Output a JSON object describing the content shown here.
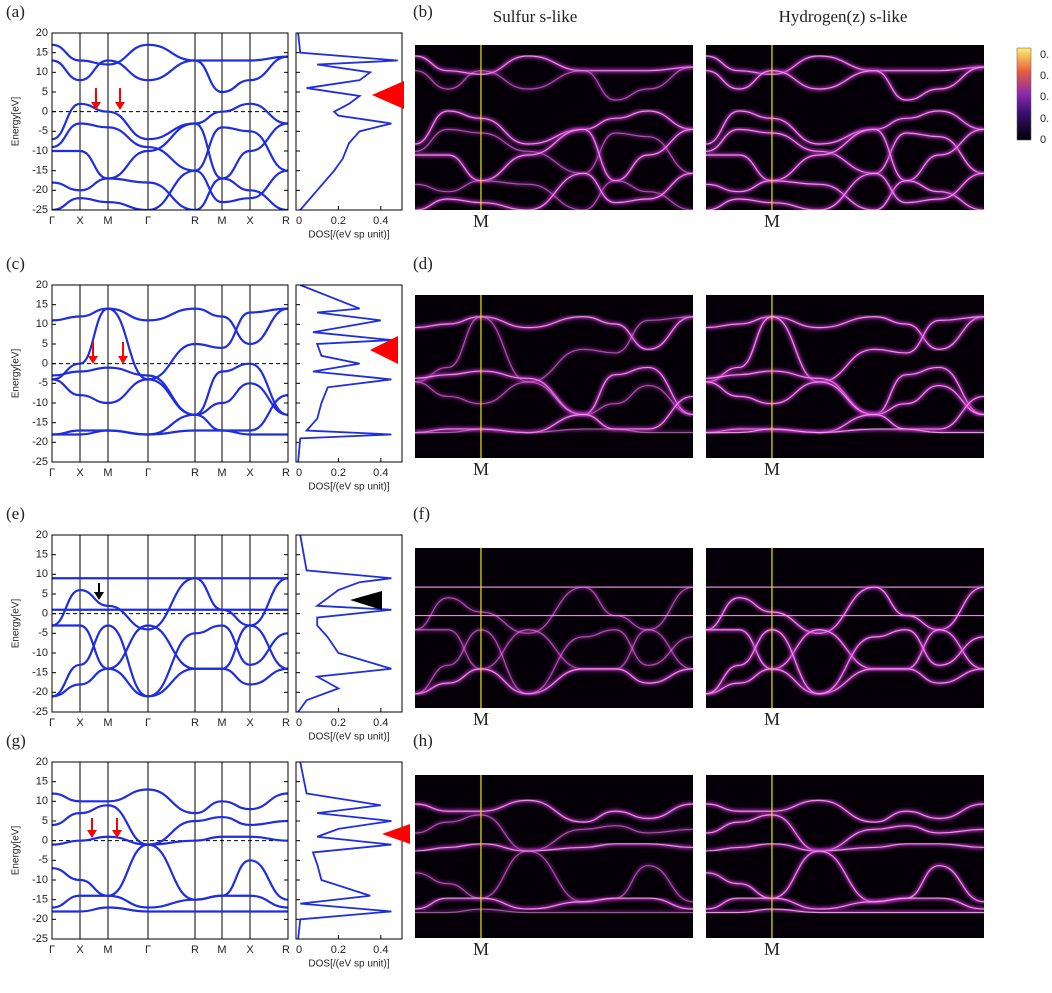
{
  "chart_data": [
    {
      "type": "band",
      "label": "(a)",
      "spectral_label": "(b)",
      "ylabel": "Energy[eV]",
      "categories": [
        "Γ",
        "X",
        "M",
        "Γ",
        "R",
        "M",
        "X",
        "R"
      ],
      "ylim": [
        -25,
        20
      ],
      "yticks": [
        20,
        15,
        10,
        5,
        0,
        -5,
        -10,
        -15,
        -20,
        -25
      ],
      "series": [
        {
          "color": "#1f2de0",
          "values": [
            17,
            13,
            12,
            17,
            13,
            13,
            13,
            14
          ]
        },
        {
          "color": "#1f2de0",
          "values": [
            13,
            8,
            13,
            8,
            13,
            5,
            8,
            14
          ]
        },
        {
          "color": "#1f2de0",
          "values": [
            -7,
            2,
            0,
            -7,
            -3,
            0,
            2,
            -3
          ]
        },
        {
          "color": "#1f2de0",
          "values": [
            -9,
            -3,
            -4,
            -9,
            -15,
            -4,
            -5,
            -15
          ]
        },
        {
          "color": "#1f2de0",
          "values": [
            -10,
            -10,
            -17,
            -10,
            -3,
            -17,
            -10,
            -3
          ]
        },
        {
          "color": "#1f2de0",
          "values": [
            -18,
            -20,
            -17,
            -18,
            -25,
            -17,
            -20,
            -25
          ]
        },
        {
          "color": "#1f2de0",
          "values": [
            -25,
            -22,
            -23,
            -25,
            -15,
            -23,
            -22,
            -15
          ]
        }
      ],
      "dos": {
        "xlabel": "DOS[/(eV sp unit)]",
        "xlim": [
          0,
          0.5
        ],
        "xticks": [
          0,
          0.2,
          0.4
        ],
        "color": "#1f2de0",
        "x": [
          0.02,
          0.1,
          0.18,
          0.22,
          0.25,
          0.3,
          0.45,
          0.2,
          0.18,
          0.25,
          0.3,
          0.05,
          0.3,
          0.35,
          0.1,
          0.48,
          0.02,
          0.01
        ],
        "y": [
          -25,
          -20,
          -15,
          -12,
          -8,
          -5,
          -3,
          -1,
          0,
          2,
          4,
          6,
          8,
          10,
          12,
          13,
          15,
          20
        ]
      }
    },
    {
      "type": "band",
      "label": "(c)",
      "spectral_label": "(d)",
      "ylabel": "Energy[eV]",
      "categories": [
        "Γ",
        "X",
        "M",
        "Γ",
        "R",
        "M",
        "X",
        "R"
      ],
      "ylim": [
        -25,
        20
      ],
      "yticks": [
        20,
        15,
        10,
        5,
        0,
        -5,
        -10,
        -15,
        -20,
        -25
      ],
      "series": [
        {
          "color": "#1f2de0",
          "values": [
            11,
            12,
            14,
            11,
            14,
            12,
            5,
            14
          ]
        },
        {
          "color": "#1f2de0",
          "values": [
            -4,
            0,
            14,
            -4,
            5,
            4,
            13,
            14
          ]
        },
        {
          "color": "#1f2de0",
          "values": [
            -3,
            -2,
            -1,
            -3,
            -13,
            -2,
            0,
            -13
          ]
        },
        {
          "color": "#1f2de0",
          "values": [
            -4,
            -8,
            -10,
            -4,
            -13,
            -10,
            -5,
            -13
          ]
        },
        {
          "color": "#1f2de0",
          "values": [
            -18,
            -17,
            -17,
            -18,
            -13,
            -17,
            -17,
            -8
          ]
        },
        {
          "color": "#1f2de0",
          "values": [
            -18,
            -18,
            -17,
            -18,
            -17,
            -17,
            -18,
            -18
          ]
        }
      ],
      "dos": {
        "xlabel": "DOS[/(eV sp unit)]",
        "xlim": [
          0,
          0.5
        ],
        "xticks": [
          0,
          0.2,
          0.4
        ],
        "color": "#1f2de0",
        "x": [
          0.01,
          0.02,
          0.45,
          0.05,
          0.1,
          0.12,
          0.15,
          0.45,
          0.08,
          0.3,
          0.12,
          0.1,
          0.45,
          0.08,
          0.4,
          0.1,
          0.3,
          0.02
        ],
        "y": [
          -25,
          -19,
          -18,
          -17,
          -14,
          -10,
          -6,
          -4,
          -2,
          0,
          2,
          5,
          6,
          8,
          11,
          13,
          14,
          20
        ]
      }
    },
    {
      "type": "band",
      "label": "(e)",
      "spectral_label": "(f)",
      "ylabel": "Energy[eV]",
      "categories": [
        "Γ",
        "X",
        "M",
        "Γ",
        "R",
        "M",
        "X",
        "R"
      ],
      "ylim": [
        -25,
        20
      ],
      "yticks": [
        20,
        15,
        10,
        5,
        0,
        -5,
        -10,
        -15,
        -20,
        -25
      ],
      "series": [
        {
          "color": "#1f2de0",
          "values": [
            9,
            9,
            9,
            9,
            9,
            9,
            9,
            9
          ]
        },
        {
          "color": "#1f2de0",
          "values": [
            -3,
            6,
            2,
            -4,
            9,
            1,
            -3,
            9
          ]
        },
        {
          "color": "#1f2de0",
          "values": [
            1,
            1,
            1,
            1,
            1,
            1,
            1,
            1
          ]
        },
        {
          "color": "#1f2de0",
          "values": [
            -3,
            -3,
            -14,
            -3,
            -14,
            -14,
            -3,
            -14
          ]
        },
        {
          "color": "#1f2de0",
          "values": [
            -21,
            -18,
            -14,
            -21,
            -14,
            -14,
            -18,
            -14
          ]
        },
        {
          "color": "#1f2de0",
          "values": [
            -21,
            -13,
            -3,
            -21,
            -5,
            -3,
            -13,
            -5
          ]
        }
      ],
      "dos": {
        "xlabel": "DOS[/(eV sp unit)]",
        "xlim": [
          0,
          0.5
        ],
        "xticks": [
          0,
          0.2,
          0.4
        ],
        "color": "#1f2de0",
        "x": [
          0.01,
          0.05,
          0.2,
          0.1,
          0.45,
          0.2,
          0.15,
          0.1,
          0.1,
          0.45,
          0.1,
          0.15,
          0.2,
          0.3,
          0.45,
          0.05,
          0.02
        ],
        "y": [
          -25,
          -22,
          -19,
          -16,
          -14,
          -10,
          -6,
          -3,
          -1,
          1,
          2,
          4,
          6,
          8,
          9,
          11,
          20
        ]
      }
    },
    {
      "type": "band",
      "label": "(g)",
      "spectral_label": "(h)",
      "ylabel": "Energy[eV]",
      "categories": [
        "Γ",
        "X",
        "M",
        "Γ",
        "R",
        "M",
        "X",
        "R"
      ],
      "ylim": [
        -25,
        20
      ],
      "yticks": [
        20,
        15,
        10,
        5,
        0,
        -5,
        -10,
        -15,
        -20,
        -25
      ],
      "series": [
        {
          "color": "#1f2de0",
          "values": [
            12,
            10,
            10,
            13,
            7,
            10,
            8,
            12
          ]
        },
        {
          "color": "#1f2de0",
          "values": [
            4,
            7,
            9,
            -1,
            5,
            6,
            4,
            5
          ]
        },
        {
          "color": "#1f2de0",
          "values": [
            -1,
            0,
            1,
            -1,
            0,
            1,
            1,
            0
          ]
        },
        {
          "color": "#1f2de0",
          "values": [
            -7,
            -10,
            -14,
            -1,
            -15,
            -14,
            -5,
            -15
          ]
        },
        {
          "color": "#1f2de0",
          "values": [
            -17,
            -14,
            -14,
            -17,
            -15,
            -14,
            -14,
            -17
          ]
        },
        {
          "color": "#1f2de0",
          "values": [
            -18,
            -18,
            -17,
            -18,
            -18,
            -18,
            -18,
            -18
          ]
        }
      ],
      "dos": {
        "xlabel": "DOS[/(eV sp unit)]",
        "xlim": [
          0,
          0.5
        ],
        "xticks": [
          0,
          0.2,
          0.4
        ],
        "color": "#1f2de0",
        "x": [
          0.01,
          0.02,
          0.45,
          0.02,
          0.35,
          0.12,
          0.1,
          0.08,
          0.45,
          0.1,
          0.2,
          0.45,
          0.1,
          0.4,
          0.05,
          0.02
        ],
        "y": [
          -25,
          -20,
          -18,
          -16,
          -14,
          -10,
          -6,
          -3,
          -1,
          1,
          3,
          5,
          7,
          9,
          12,
          20
        ]
      }
    }
  ],
  "spectral": {
    "columns": [
      "Sulfur s-like",
      "Hydrogen(z) s-like"
    ],
    "marker": "M",
    "line_color": "#f4a0e8",
    "glow_color": "#c030c8",
    "marker_line_color": "#e8e800",
    "colorbar_labels": [
      "0.",
      "0.",
      "0.",
      "0.",
      "0"
    ]
  }
}
